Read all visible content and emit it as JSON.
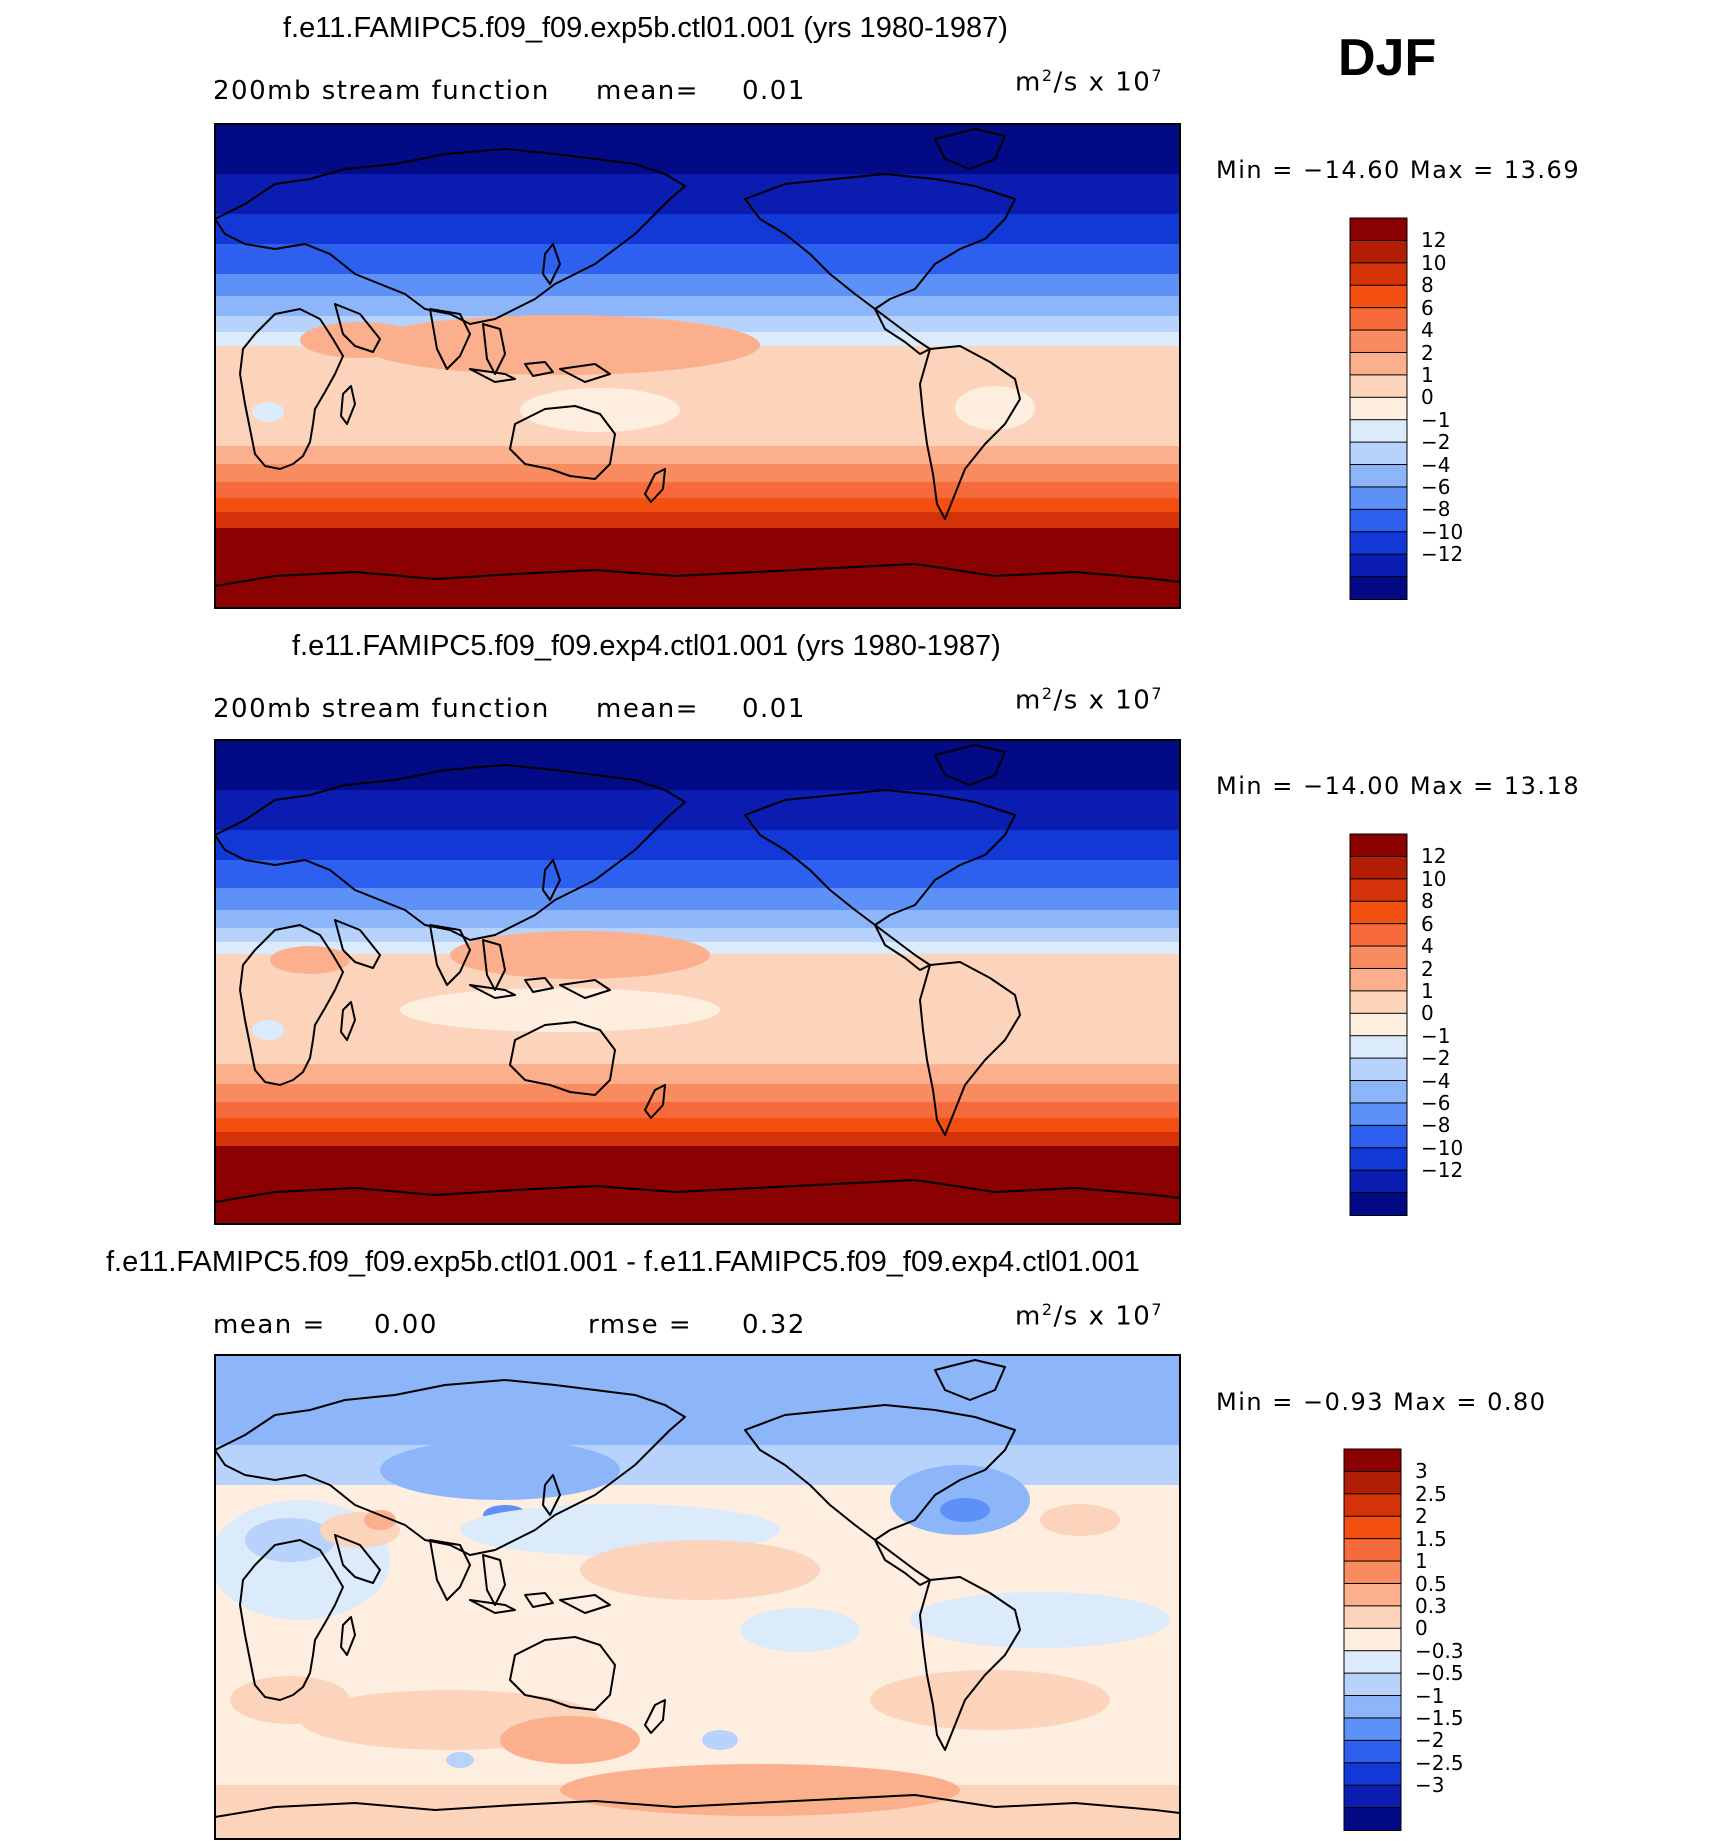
{
  "season": "DJF",
  "panels": [
    {
      "title": "f.e11.FAMIPC5.f09_f09.exp5b.ctl01.001 (yrs 1980-1987)",
      "subtitle_left": "200mb stream function",
      "stat1_label": "mean=",
      "stat1_value": "0.01",
      "units_base": "m",
      "units_exp": "2",
      "units_mid": "/s x 10",
      "units_pow": "7",
      "min_max": "Min = −14.60 Max =   13.69",
      "min": -14.6,
      "max": 13.69,
      "colorbar_labels": [
        "12",
        "10",
        "8",
        "6",
        "4",
        "2",
        "1",
        "0",
        "−1",
        "−2",
        "−4",
        "−6",
        "−8",
        "−10",
        "−12"
      ]
    },
    {
      "title": "f.e11.FAMIPC5.f09_f09.exp4.ctl01.001 (yrs 1980-1987)",
      "subtitle_left": "200mb stream function",
      "stat1_label": "mean=",
      "stat1_value": "0.01",
      "units_base": "m",
      "units_exp": "2",
      "units_mid": "/s x 10",
      "units_pow": "7",
      "min_max": "Min = −14.00 Max =   13.18",
      "min": -14.0,
      "max": 13.18,
      "colorbar_labels": [
        "12",
        "10",
        "8",
        "6",
        "4",
        "2",
        "1",
        "0",
        "−1",
        "−2",
        "−4",
        "−6",
        "−8",
        "−10",
        "−12"
      ]
    },
    {
      "title": "f.e11.FAMIPC5.f09_f09.exp5b.ctl01.001 - f.e11.FAMIPC5.f09_f09.exp4.ctl01.001",
      "subtitle_left": "mean =",
      "stat1_label": "",
      "stat1_value": "0.00",
      "stat2_label": "rmse =",
      "stat2_value": "0.32",
      "units_base": "m",
      "units_exp": "2",
      "units_mid": "/s x 10",
      "units_pow": "7",
      "min_max": "Min =   −0.93 Max =    0.80",
      "min": -0.93,
      "max": 0.8,
      "colorbar_labels": [
        "3",
        "2.5",
        "2",
        "1.5",
        "1",
        "0.5",
        "0.3",
        "0",
        "−0.3",
        "−0.5",
        "−1",
        "−1.5",
        "−2",
        "−2.5",
        "−3"
      ]
    }
  ],
  "colors": {
    "field_scale": [
      "#8b0000",
      "#b11e05",
      "#d43208",
      "#f24f10",
      "#f66a3c",
      "#f88b60",
      "#fbaf8c",
      "#fcd3bb",
      "#fdeee0",
      "#dcebfb",
      "#b7d3fb",
      "#8db6fa",
      "#5e91f7",
      "#2e60f0",
      "#1238d6",
      "#0a1db0",
      "#020a85"
    ],
    "diff_scale": [
      "#8b0000",
      "#b11e05",
      "#d43208",
      "#f24f10",
      "#f66a3c",
      "#f88b60",
      "#fbaf8c",
      "#fcd3bb",
      "#fdeee0",
      "#dcebfb",
      "#b7d3fb",
      "#8db6fa",
      "#5e91f7",
      "#2e60f0",
      "#1238d6",
      "#0a1db0",
      "#020a85"
    ]
  }
}
